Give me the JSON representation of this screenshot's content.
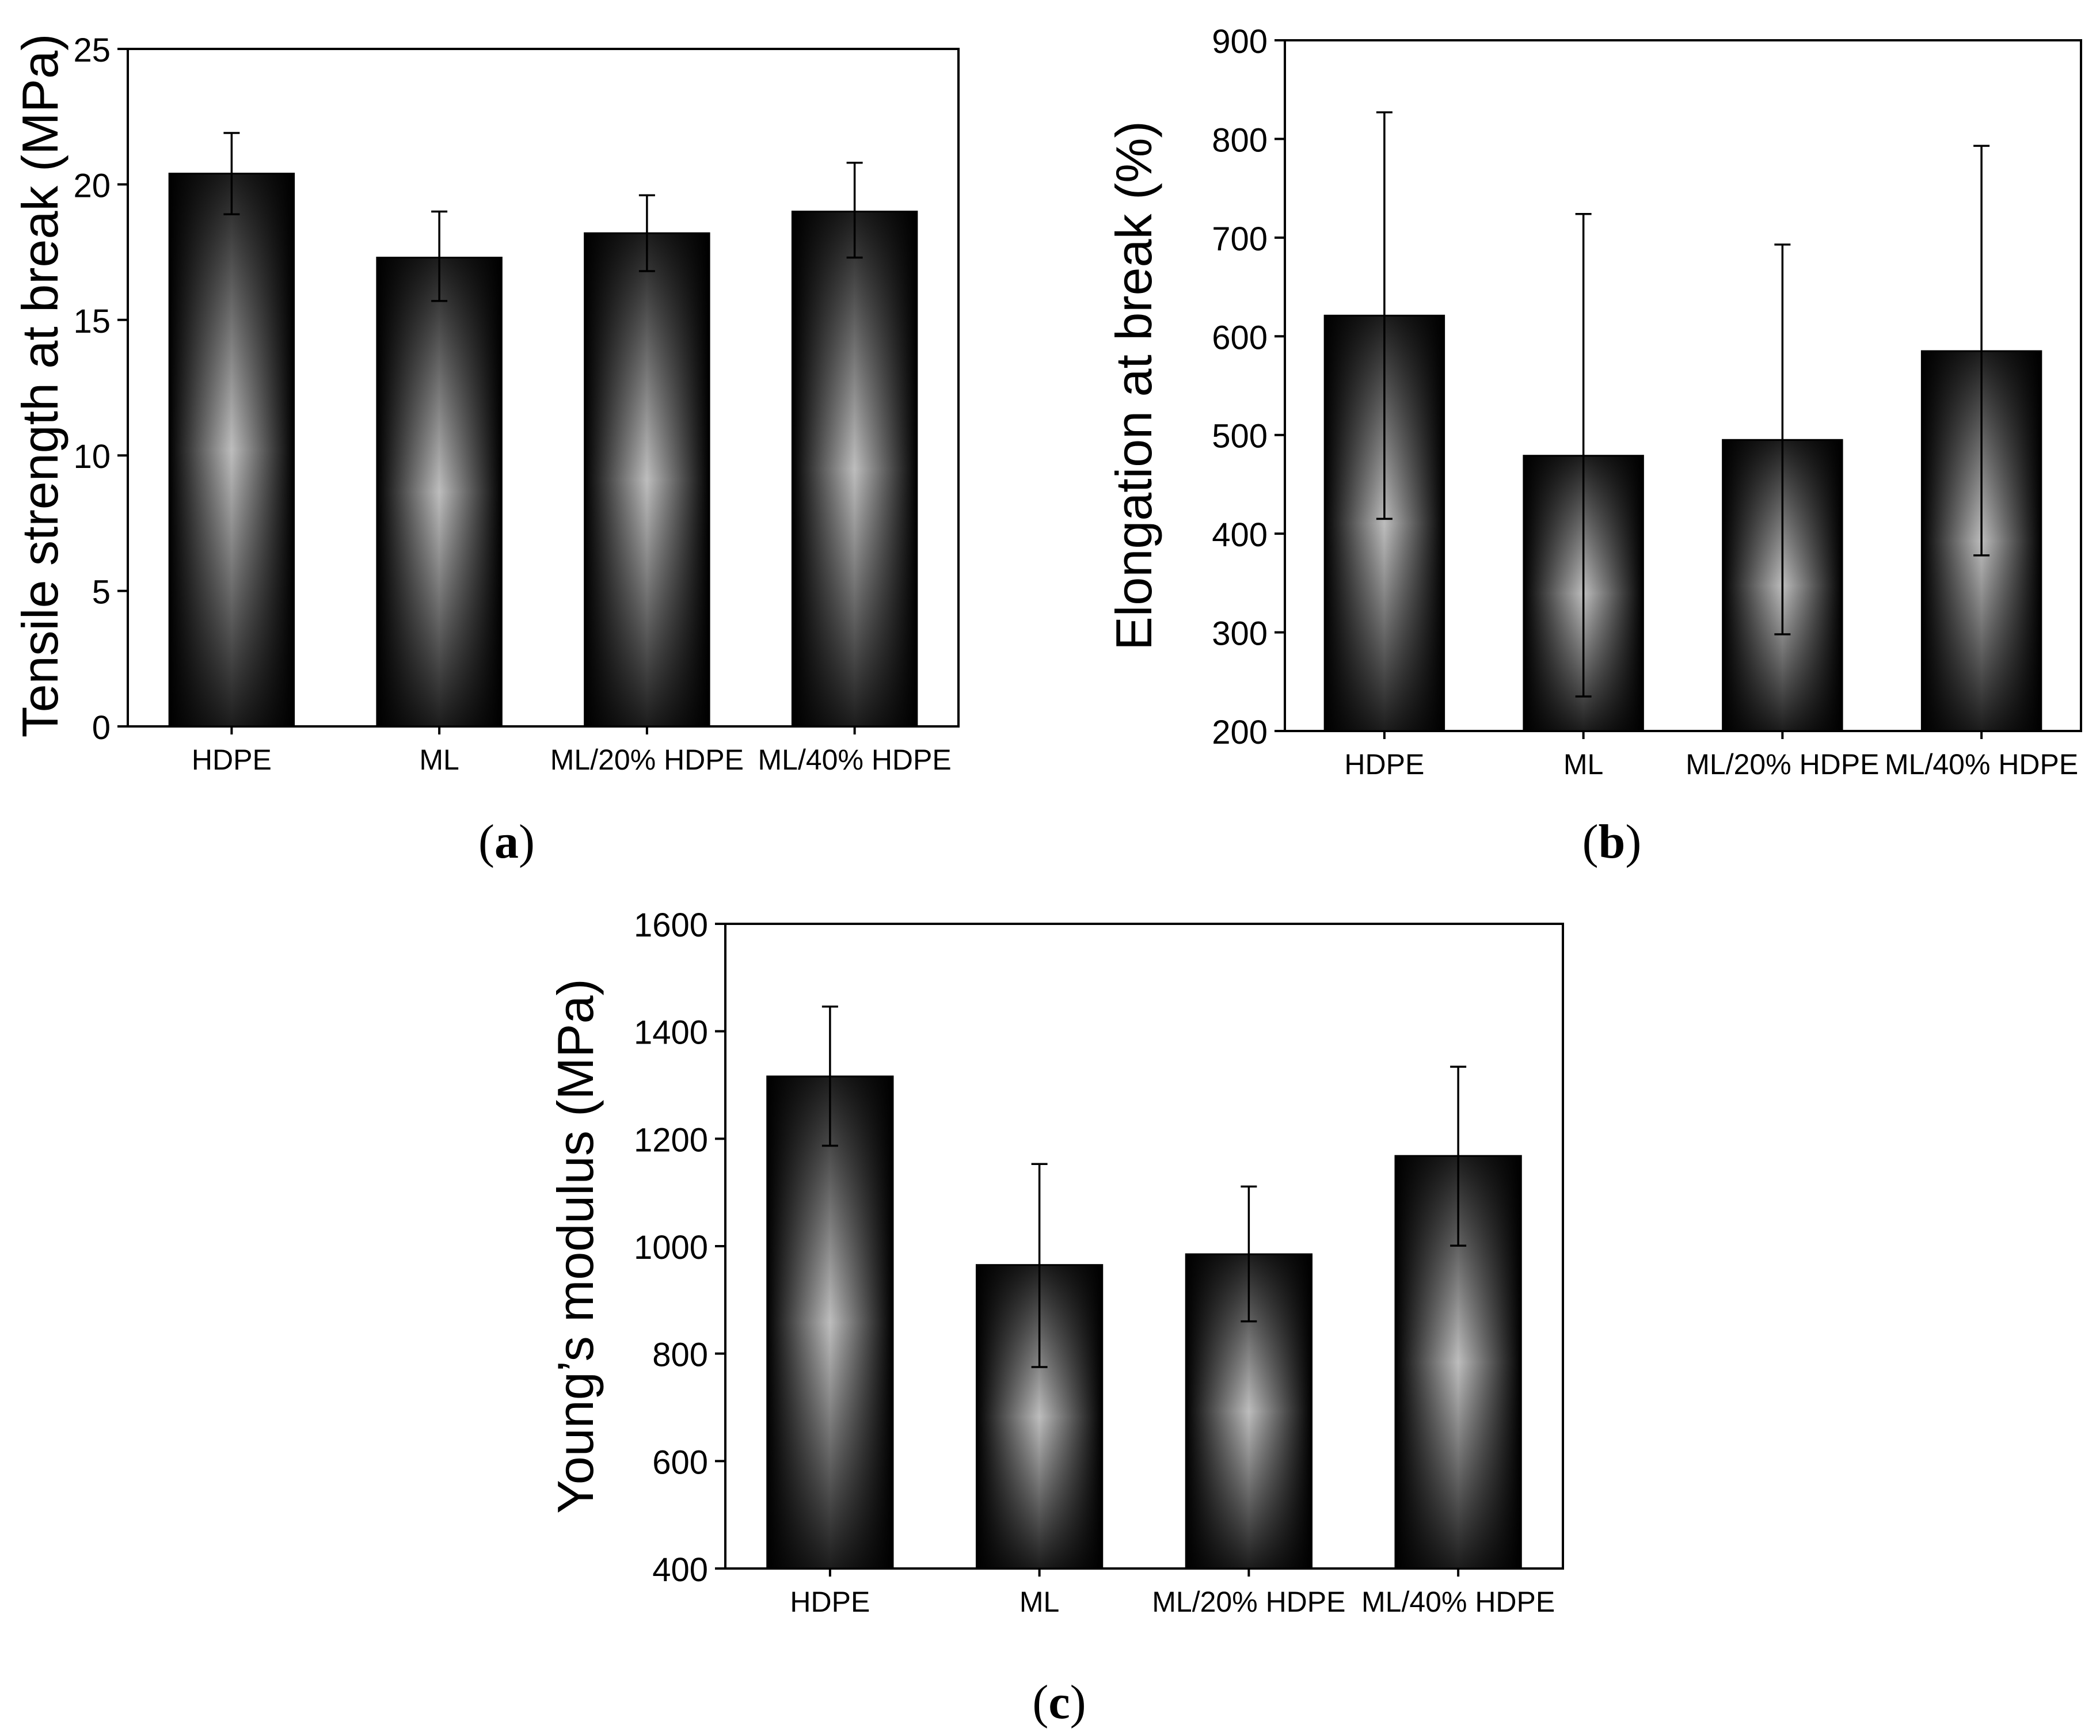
{
  "charts": [
    {
      "panel": "a",
      "caption_letter": "a",
      "caption_open": "(",
      "caption_close": ")",
      "ylabel": "Tensile strength at break (MPa)",
      "ylim": [
        0,
        25
      ],
      "yticks": [
        0,
        5,
        10,
        15,
        20,
        25
      ]
    },
    {
      "panel": "b",
      "caption_letter": "b",
      "caption_open": "(",
      "caption_close": ")",
      "ylabel": "Elongation at break (%)",
      "ylim": [
        200,
        900
      ],
      "yticks": [
        200,
        300,
        400,
        500,
        600,
        700,
        800,
        900
      ]
    },
    {
      "panel": "c",
      "caption_letter": "c",
      "caption_open": "(",
      "caption_close": ")",
      "ylabel": "Young’s modulus (MPa)",
      "ylim": [
        400,
        1600
      ],
      "yticks": [
        400,
        600,
        800,
        1000,
        1200,
        1400,
        1600
      ]
    }
  ],
  "chart_data": [
    {
      "type": "bar",
      "title": "",
      "xlabel": "",
      "ylabel": "Tensile strength at break (MPa)",
      "ylim": [
        0,
        25
      ],
      "categories": [
        "HDPE",
        "ML",
        "ML/20% HDPE",
        "ML/40% HDPE"
      ],
      "values": [
        20.4,
        17.3,
        18.2,
        19.0
      ],
      "error_low": [
        18.9,
        15.7,
        16.8,
        17.3
      ],
      "error_high": [
        21.9,
        19.0,
        19.6,
        20.8
      ]
    },
    {
      "type": "bar",
      "title": "",
      "xlabel": "",
      "ylabel": "Elongation at break (%)",
      "ylim": [
        200,
        900
      ],
      "categories": [
        "HDPE",
        "ML",
        "ML/20% HDPE",
        "ML/40% HDPE"
      ],
      "values": [
        621,
        479,
        495,
        585
      ],
      "error_low": [
        415,
        235,
        298,
        378
      ],
      "error_high": [
        827,
        724,
        693,
        793
      ]
    },
    {
      "type": "bar",
      "title": "",
      "xlabel": "",
      "ylabel": "Young’s modulus (MPa)",
      "ylim": [
        400,
        1600
      ],
      "categories": [
        "HDPE",
        "ML",
        "ML/20% HDPE",
        "ML/40% HDPE"
      ],
      "values": [
        1316,
        965,
        985,
        1168
      ],
      "error_low": [
        1187,
        775,
        860,
        1001
      ],
      "error_high": [
        1446,
        1153,
        1111,
        1334
      ]
    }
  ]
}
